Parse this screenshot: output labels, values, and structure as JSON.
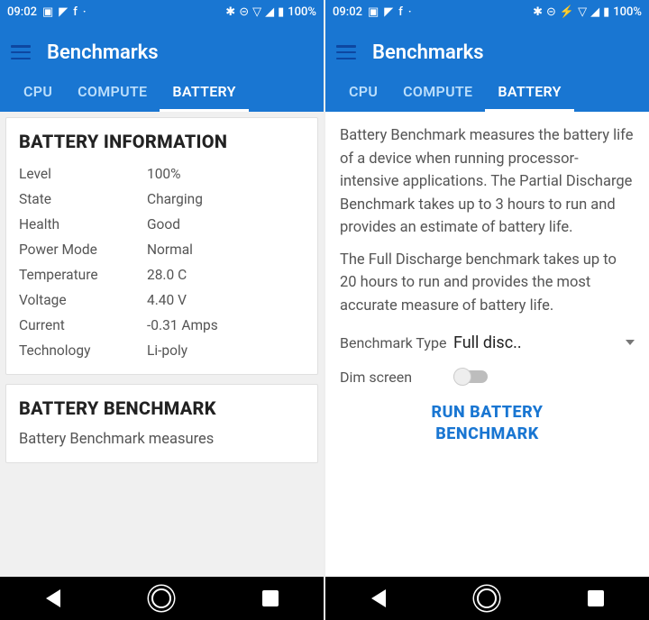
{
  "statusbar": {
    "time": "09:02",
    "battery": "100%"
  },
  "appbar": {
    "title": "Benchmarks"
  },
  "tabs": {
    "items": [
      {
        "label": "CPU",
        "active": false
      },
      {
        "label": "COMPUTE",
        "active": false
      },
      {
        "label": "BATTERY",
        "active": true
      }
    ]
  },
  "left": {
    "card1": {
      "title": "BATTERY INFORMATION",
      "rows": [
        {
          "k": "Level",
          "v": "100%"
        },
        {
          "k": "State",
          "v": "Charging"
        },
        {
          "k": "Health",
          "v": "Good"
        },
        {
          "k": "Power Mode",
          "v": "Normal"
        },
        {
          "k": "Temperature",
          "v": "28.0 C"
        },
        {
          "k": "Voltage",
          "v": "4.40 V"
        },
        {
          "k": "Current",
          "v": "-0.31 Amps"
        },
        {
          "k": "Technology",
          "v": "Li-poly"
        }
      ]
    },
    "card2": {
      "title": "BATTERY BENCHMARK",
      "text": "Battery Benchmark measures"
    }
  },
  "right": {
    "para1": "Battery Benchmark measures the battery life of a device when running processor-intensive applications. The Partial Discharge Benchmark takes up to 3 hours to run and provides an estimate of battery life.",
    "para2": "The Full Discharge benchmark takes up to 20 hours to run and provides the most accurate measure of battery life.",
    "type_label": "Benchmark Type",
    "type_value": "Full disc..",
    "dim_label": "Dim screen",
    "dim_on": false,
    "run_line1": "RUN BATTERY",
    "run_line2": "BENCHMARK"
  },
  "colors": {
    "primary": "#1976d2",
    "primary_dark": "#0d47a1",
    "tab_inactive": "#bbdefb",
    "text": "#555555",
    "bg": "#f0f0f0"
  }
}
